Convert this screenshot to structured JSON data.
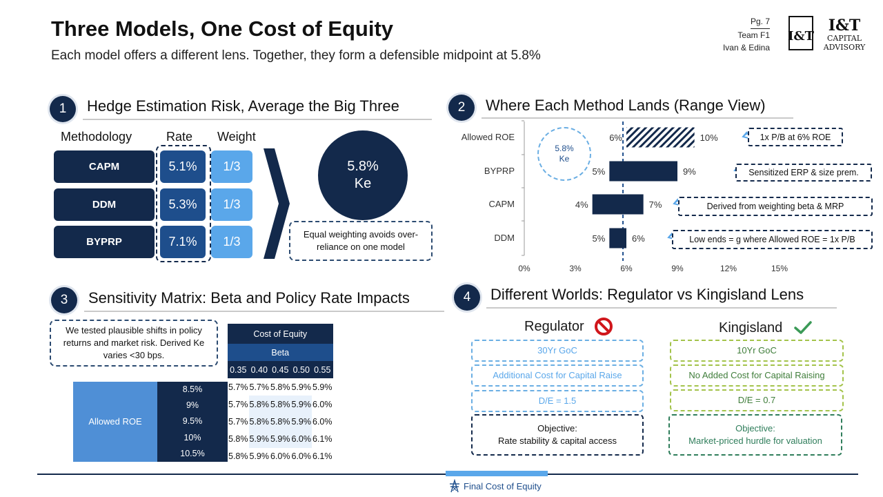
{
  "header": {
    "title": "Three Models, One Cost of Equity",
    "subtitle": "Each model offers a different lens. Together, they form a defensible midpoint at 5.8%",
    "page": "Pg. 7",
    "team": "Team F1",
    "authors": "Ivan & Edina",
    "logo": {
      "mark": "I&T",
      "line1": "I&T",
      "line2": "CAPITAL",
      "line3": "ADVISORY"
    }
  },
  "section1": {
    "number": "1",
    "title": "Hedge Estimation Risk, Average the Big Three",
    "col_method": "Methodology",
    "col_rate": "Rate",
    "col_weight": "Weight",
    "rows": [
      {
        "method": "CAPM",
        "rate": "5.1%",
        "weight": "1/3"
      },
      {
        "method": "DDM",
        "rate": "5.3%",
        "weight": "1/3"
      },
      {
        "method": "BYPRP",
        "rate": "7.1%",
        "weight": "1/3"
      }
    ],
    "result_value": "5.8%",
    "result_label": "Ke",
    "note": "Equal weighting avoids over-reliance on one model"
  },
  "section2": {
    "number": "2",
    "title": "Where Each Method Lands (Range View)",
    "ke_badge_value": "5.8%",
    "ke_badge_label": "Ke",
    "chart_data": {
      "type": "bar",
      "orientation": "horizontal-range",
      "categories": [
        "Allowed ROE",
        "BYPRP",
        "CAPM",
        "DDM"
      ],
      "low": [
        6,
        5,
        4,
        5
      ],
      "high": [
        10,
        9,
        7,
        6
      ],
      "low_labels": [
        "6%",
        "5%",
        "4%",
        "5%"
      ],
      "high_labels": [
        "10%",
        "9%",
        "7%",
        "6%"
      ],
      "reference_line": 5.8,
      "xlim": [
        0,
        15
      ],
      "xticks": [
        "0%",
        "3%",
        "6%",
        "9%",
        "12%",
        "15%"
      ],
      "xtick_values": [
        0,
        3,
        6,
        9,
        12,
        15
      ],
      "callouts": [
        "1x P/B at 6% ROE",
        "Sensitized ERP & size prem.",
        "Derived from weighting beta & MRP",
        "Low ends = g where Allowed ROE = 1x P/B"
      ]
    }
  },
  "section3": {
    "number": "3",
    "title": "Sensitivity Matrix: Beta and Policy Rate Impacts",
    "note": "We tested plausible shifts in policy returns and market risk. Derived Ke varies <30 bps.",
    "table_title": "Cost of Equity",
    "col_group": "Beta",
    "betas": [
      "0.35",
      "0.40",
      "0.45",
      "0.50",
      "0.55"
    ],
    "row_group": "Allowed ROE",
    "rows": [
      {
        "roe": "8.5%",
        "values": [
          "5.7%",
          "5.7%",
          "5.8%",
          "5.9%",
          "5.9%"
        ]
      },
      {
        "roe": "9%",
        "values": [
          "5.7%",
          "5.8%",
          "5.8%",
          "5.9%",
          "6.0%"
        ]
      },
      {
        "roe": "9.5%",
        "values": [
          "5.7%",
          "5.8%",
          "5.8%",
          "5.9%",
          "6.0%"
        ]
      },
      {
        "roe": "10%",
        "values": [
          "5.8%",
          "5.9%",
          "5.9%",
          "6.0%",
          "6.1%"
        ]
      },
      {
        "roe": "10.5%",
        "values": [
          "5.8%",
          "5.9%",
          "6.0%",
          "6.0%",
          "6.1%"
        ]
      }
    ]
  },
  "section4": {
    "number": "4",
    "title": "Different Worlds: Regulator vs Kingisland Lens",
    "regulator": {
      "title": "Regulator",
      "items": [
        "30Yr GoC",
        "Additional Cost for Capital Raise",
        "D/E = 1.5"
      ],
      "objective_label": "Objective:",
      "objective": "Rate stability & capital access",
      "color": "#6aaee3"
    },
    "kingisland": {
      "title": "Kingisland",
      "items": [
        "10Yr GoC",
        "No Added Cost for Capital Raising",
        "D/E = 0.7"
      ],
      "objective_label": "Objective:",
      "objective": "Market-priced hurdle for valuation",
      "color": "#a3c34a"
    }
  },
  "footer": {
    "label": "Final Cost of Equity"
  },
  "colors": {
    "navy": "#13294b",
    "mid_blue": "#1e4e8c",
    "light_blue": "#5aa7ea",
    "green": "#2e7d5a",
    "red": "#d0161b"
  }
}
